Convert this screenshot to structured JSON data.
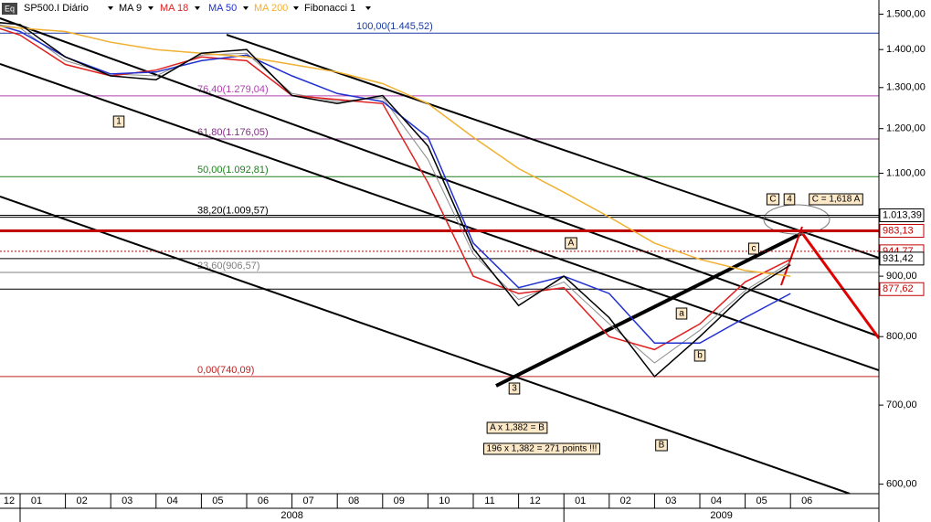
{
  "chart_data": {
    "type": "line",
    "title": "SP500.I Diário",
    "categories": [
      "12",
      "01",
      "02",
      "03",
      "04",
      "05",
      "06",
      "07",
      "08",
      "09",
      "10",
      "11",
      "12",
      "01",
      "02",
      "03",
      "04",
      "05",
      "06"
    ],
    "year_labels": [
      "2008",
      "2009"
    ],
    "price": {
      "color": "#000000",
      "values": [
        1480,
        1470,
        1380,
        1330,
        1320,
        1390,
        1400,
        1280,
        1260,
        1280,
        1160,
        950,
        850,
        900,
        830,
        740,
        800,
        870,
        920
      ]
    },
    "series": [
      {
        "name": "MA 9",
        "color": "#8a8a8a",
        "values": [
          1478,
          1460,
          1370,
          1335,
          1330,
          1385,
          1390,
          1285,
          1265,
          1275,
          1130,
          940,
          860,
          890,
          820,
          760,
          810,
          875,
          925
        ]
      },
      {
        "name": "MA 18",
        "color": "#e02020",
        "values": [
          1475,
          1440,
          1360,
          1330,
          1345,
          1380,
          1370,
          1280,
          1270,
          1260,
          1080,
          900,
          870,
          880,
          800,
          780,
          820,
          890,
          930
        ]
      },
      {
        "name": "MA 50",
        "color": "#2030d0",
        "values": [
          1482,
          1450,
          1380,
          1335,
          1340,
          1370,
          1385,
          1330,
          1285,
          1265,
          1180,
          960,
          880,
          900,
          870,
          790,
          790,
          830,
          870
        ]
      },
      {
        "name": "MA 200",
        "color": "#f0b030",
        "values": [
          1470,
          1460,
          1450,
          1420,
          1400,
          1390,
          1380,
          1360,
          1340,
          1310,
          1260,
          1180,
          1110,
          1060,
          1010,
          960,
          930,
          910,
          900
        ]
      }
    ],
    "fibonacci": {
      "name": "Fibonacci 1",
      "levels": [
        {
          "value": 1445.52,
          "label": "100,00(1.445,52)",
          "color": "#1a3aa0"
        },
        {
          "value": 1279.04,
          "label": "76,40(1.279,04)",
          "color": "#b040b0"
        },
        {
          "value": 1176.05,
          "label": "61,80(1.176,05)",
          "color": "#803080"
        },
        {
          "value": 1092.81,
          "label": "50,00(1.092,81)",
          "color": "#208020"
        },
        {
          "value": 1009.57,
          "label": "38,20(1.009,57)",
          "color": "#000000"
        },
        {
          "value": 906.57,
          "label": "23,60(906,57)",
          "color": "#808080"
        },
        {
          "value": 740.09,
          "label": "0,00(740,09)",
          "color": "#c02020"
        }
      ]
    },
    "price_labels": [
      {
        "value": 1013.39,
        "label": "1.013,39",
        "color": "#000000"
      },
      {
        "value": 983.13,
        "label": "983,13",
        "color": "#c00000"
      },
      {
        "value": 944.77,
        "label": "944,77",
        "color": "#c00000"
      },
      {
        "value": 931.42,
        "label": "931,42",
        "color": "#000000"
      },
      {
        "value": 877.62,
        "label": "877,62",
        "color": "#c00000"
      }
    ],
    "annotations": [
      "1",
      "3",
      "A",
      "a",
      "b",
      "B",
      "c",
      "C",
      "4",
      "C = 1,618 A",
      "A  x 1,382 = B",
      "196 x 1,382 = 271 points !!!"
    ],
    "log_scale": true,
    "ylim": [
      589,
      1542
    ],
    "yticks": [
      {
        "value": 1500,
        "label": "1.500,00"
      },
      {
        "value": 1400,
        "label": "1.400,00"
      },
      {
        "value": 1300,
        "label": "1.300,00"
      },
      {
        "value": 1200,
        "label": "1.200,00"
      },
      {
        "value": 1100,
        "label": "1.100,00"
      },
      {
        "value": 900,
        "label": "900,00"
      },
      {
        "value": 800,
        "label": "800,00"
      },
      {
        "value": 700,
        "label": "700,00"
      },
      {
        "value": 600,
        "label": "600,00"
      }
    ]
  }
}
